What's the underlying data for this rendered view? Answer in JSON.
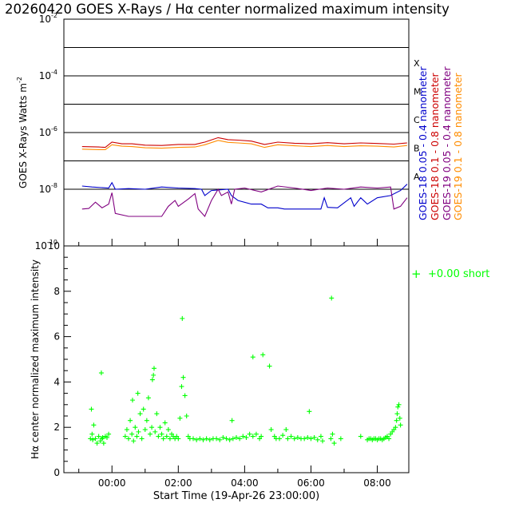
{
  "title": "20260420 GOES X-Rays / Hα center normalized maximum intensity",
  "x_axis": {
    "label": "Start Time (19-Apr-26 23:00:00)",
    "ticks": [
      {
        "hour": 1,
        "label": "00:00"
      },
      {
        "hour": 3,
        "label": "02:00"
      },
      {
        "hour": 5,
        "label": "04:00"
      },
      {
        "hour": 7,
        "label": "06:00"
      },
      {
        "hour": 9,
        "label": "08:00"
      }
    ]
  },
  "chart_data": [
    {
      "type": "line",
      "name": "goes-xray",
      "ylabel_main": "GOES X-Rays Watts m",
      "ylabel_exp": "-2",
      "yscale": "log",
      "ylim": [
        1e-10,
        0.01
      ],
      "y_ticks": [
        {
          "value": 0.01,
          "base": "10",
          "exp": "-2"
        },
        {
          "value": 0.0001,
          "base": "10",
          "exp": "-4"
        },
        {
          "value": 1e-06,
          "base": "10",
          "exp": "-6"
        },
        {
          "value": 1e-08,
          "base": "10",
          "exp": "-8"
        },
        {
          "value": 1e-10,
          "base": "10",
          "exp": "-10"
        }
      ],
      "flare_classes": [
        {
          "label": "X",
          "value": 0.0001
        },
        {
          "label": "M",
          "value": 1e-05
        },
        {
          "label": "C",
          "value": 1e-06
        },
        {
          "label": "B",
          "value": 1e-07
        },
        {
          "label": "A",
          "value": 1e-08
        }
      ],
      "threshold_lines": [
        0.001,
        0.0001,
        1e-05,
        1e-06,
        1e-07,
        1e-08
      ],
      "series": [
        {
          "name": "GOES-18 0.05 - 0.4 nanometer",
          "color": "#0000cc",
          "points": [
            [
              0.1,
              1.3e-08
            ],
            [
              0.4,
              1.2e-08
            ],
            [
              0.9,
              1.1e-08
            ],
            [
              1.0,
              1.7e-08
            ],
            [
              1.1,
              1e-08
            ],
            [
              1.5,
              1.05e-08
            ],
            [
              2.0,
              1e-08
            ],
            [
              2.5,
              1.2e-08
            ],
            [
              3.0,
              1.1e-08
            ],
            [
              3.5,
              1.05e-08
            ],
            [
              3.7,
              1e-08
            ],
            [
              3.8,
              6e-09
            ],
            [
              4.0,
              9e-09
            ],
            [
              4.5,
              1e-08
            ],
            [
              4.6,
              6e-09
            ],
            [
              4.8,
              4e-09
            ],
            [
              5.2,
              3e-09
            ],
            [
              5.5,
              3e-09
            ],
            [
              5.7,
              2.2e-09
            ],
            [
              6.0,
              2.2e-09
            ],
            [
              6.2,
              2e-09
            ],
            [
              6.8,
              2e-09
            ],
            [
              7.3,
              2e-09
            ],
            [
              7.4,
              5e-09
            ],
            [
              7.5,
              2.3e-09
            ],
            [
              7.8,
              2.2e-09
            ],
            [
              8.2,
              5e-09
            ],
            [
              8.3,
              2.5e-09
            ],
            [
              8.5,
              5e-09
            ],
            [
              8.7,
              3e-09
            ],
            [
              9.0,
              5e-09
            ],
            [
              9.4,
              6e-09
            ],
            [
              9.7,
              9e-09
            ],
            [
              9.9,
              1.5e-08
            ]
          ]
        },
        {
          "name": "GOES-18 0.1 - 0.8 nanometer",
          "color": "#cc0000",
          "points": [
            [
              0.1,
              3.2e-07
            ],
            [
              0.6,
              3.1e-07
            ],
            [
              0.8,
              3e-07
            ],
            [
              1.0,
              4.6e-07
            ],
            [
              1.3,
              4e-07
            ],
            [
              1.6,
              4e-07
            ],
            [
              2.0,
              3.6e-07
            ],
            [
              2.5,
              3.5e-07
            ],
            [
              3.0,
              3.8e-07
            ],
            [
              3.5,
              3.8e-07
            ],
            [
              3.8,
              4.6e-07
            ],
            [
              4.2,
              6.6e-07
            ],
            [
              4.5,
              5.6e-07
            ],
            [
              4.8,
              5.4e-07
            ],
            [
              5.2,
              5e-07
            ],
            [
              5.6,
              3.8e-07
            ],
            [
              6.0,
              4.6e-07
            ],
            [
              6.5,
              4.2e-07
            ],
            [
              7.0,
              4e-07
            ],
            [
              7.5,
              4.4e-07
            ],
            [
              8.0,
              4e-07
            ],
            [
              8.5,
              4.3e-07
            ],
            [
              9.0,
              4.1e-07
            ],
            [
              9.5,
              3.9e-07
            ],
            [
              9.9,
              4.3e-07
            ]
          ]
        },
        {
          "name": "GOES-19 0.05 - 0.4 nanometer",
          "color": "#800080",
          "points": [
            [
              0.1,
              2e-09
            ],
            [
              0.3,
              2.1e-09
            ],
            [
              0.5,
              3.5e-09
            ],
            [
              0.7,
              2.2e-09
            ],
            [
              0.9,
              3e-09
            ],
            [
              1.0,
              7.5e-09
            ],
            [
              1.1,
              1.4e-09
            ],
            [
              1.5,
              1.1e-09
            ],
            [
              2.0,
              1.1e-09
            ],
            [
              2.5,
              1.1e-09
            ],
            [
              2.7,
              2.5e-09
            ],
            [
              2.9,
              4e-09
            ],
            [
              3.0,
              2.5e-09
            ],
            [
              3.3,
              4.5e-09
            ],
            [
              3.5,
              7e-09
            ],
            [
              3.6,
              2e-09
            ],
            [
              3.8,
              1.1e-09
            ],
            [
              4.0,
              4e-09
            ],
            [
              4.2,
              1e-08
            ],
            [
              4.3,
              6e-09
            ],
            [
              4.5,
              8e-09
            ],
            [
              4.6,
              3e-09
            ],
            [
              4.7,
              1e-08
            ],
            [
              5.0,
              1.1e-08
            ],
            [
              5.5,
              8e-09
            ],
            [
              6.0,
              1.3e-08
            ],
            [
              6.5,
              1.1e-08
            ],
            [
              7.0,
              9e-09
            ],
            [
              7.5,
              1.1e-08
            ],
            [
              8.0,
              1e-08
            ],
            [
              8.5,
              1.2e-08
            ],
            [
              9.0,
              1.1e-08
            ],
            [
              9.4,
              1.2e-08
            ],
            [
              9.5,
              2e-09
            ],
            [
              9.7,
              2.5e-09
            ],
            [
              9.9,
              5e-09
            ]
          ]
        },
        {
          "name": "GOES-19 0.1 - 0.8 nanometer",
          "color": "#ff8c00",
          "points": [
            [
              0.1,
              2.6e-07
            ],
            [
              0.6,
              2.5e-07
            ],
            [
              0.8,
              2.5e-07
            ],
            [
              1.0,
              3.7e-07
            ],
            [
              1.3,
              3.3e-07
            ],
            [
              1.6,
              3.2e-07
            ],
            [
              2.0,
              2.9e-07
            ],
            [
              2.5,
              2.8e-07
            ],
            [
              3.0,
              3e-07
            ],
            [
              3.5,
              3.1e-07
            ],
            [
              3.8,
              3.7e-07
            ],
            [
              4.2,
              5.3e-07
            ],
            [
              4.5,
              4.5e-07
            ],
            [
              4.8,
              4.3e-07
            ],
            [
              5.2,
              4e-07
            ],
            [
              5.6,
              3e-07
            ],
            [
              6.0,
              3.7e-07
            ],
            [
              6.5,
              3.4e-07
            ],
            [
              7.0,
              3.2e-07
            ],
            [
              7.5,
              3.5e-07
            ],
            [
              8.0,
              3.2e-07
            ],
            [
              8.5,
              3.4e-07
            ],
            [
              9.0,
              3.3e-07
            ],
            [
              9.5,
              3.1e-07
            ],
            [
              9.9,
              3.5e-07
            ]
          ]
        }
      ]
    },
    {
      "type": "scatter",
      "name": "halpha-intensity",
      "ylabel": "Hα center normalized maximum intensity",
      "ylim": [
        0,
        10
      ],
      "y_ticks": [
        0,
        2,
        4,
        6,
        8,
        10
      ],
      "legend": {
        "symbol": "+",
        "text": "+0.00 short",
        "color": "#00ff00"
      },
      "points": [
        [
          0.35,
          1.5
        ],
        [
          0.4,
          1.7
        ],
        [
          0.42,
          1.45
        ],
        [
          0.5,
          1.5
        ],
        [
          0.55,
          1.3
        ],
        [
          0.6,
          1.6
        ],
        [
          0.65,
          1.4
        ],
        [
          0.7,
          1.5
        ],
        [
          0.72,
          1.55
        ],
        [
          0.75,
          1.3
        ],
        [
          0.8,
          1.6
        ],
        [
          0.85,
          1.55
        ],
        [
          0.9,
          1.7
        ],
        [
          0.68,
          4.4
        ],
        [
          0.38,
          2.8
        ],
        [
          0.45,
          2.1
        ],
        [
          1.4,
          1.6
        ],
        [
          1.45,
          1.9
        ],
        [
          1.5,
          1.5
        ],
        [
          1.55,
          2.3
        ],
        [
          1.6,
          1.7
        ],
        [
          1.62,
          3.2
        ],
        [
          1.65,
          1.4
        ],
        [
          1.7,
          2.0
        ],
        [
          1.75,
          1.6
        ],
        [
          1.78,
          3.5
        ],
        [
          1.8,
          1.8
        ],
        [
          1.85,
          2.6
        ],
        [
          1.9,
          1.5
        ],
        [
          1.95,
          2.8
        ],
        [
          2.0,
          1.9
        ],
        [
          2.05,
          2.3
        ],
        [
          2.1,
          3.3
        ],
        [
          2.15,
          1.7
        ],
        [
          2.2,
          2.0
        ],
        [
          2.22,
          4.1
        ],
        [
          2.25,
          4.3
        ],
        [
          2.27,
          4.6
        ],
        [
          2.3,
          1.8
        ],
        [
          2.35,
          2.6
        ],
        [
          2.4,
          1.6
        ],
        [
          2.45,
          2.0
        ],
        [
          2.5,
          1.7
        ],
        [
          2.55,
          1.5
        ],
        [
          2.6,
          2.2
        ],
        [
          2.65,
          1.6
        ],
        [
          2.7,
          1.9
        ],
        [
          2.75,
          1.5
        ],
        [
          2.8,
          1.7
        ],
        [
          2.85,
          1.6
        ],
        [
          2.9,
          1.5
        ],
        [
          2.95,
          1.6
        ],
        [
          3.0,
          1.5
        ],
        [
          3.05,
          2.4
        ],
        [
          3.1,
          3.8
        ],
        [
          3.12,
          6.8
        ],
        [
          3.15,
          4.2
        ],
        [
          3.2,
          3.4
        ],
        [
          3.25,
          2.5
        ],
        [
          3.3,
          1.6
        ],
        [
          3.35,
          1.5
        ],
        [
          3.45,
          1.5
        ],
        [
          3.55,
          1.45
        ],
        [
          3.65,
          1.5
        ],
        [
          3.75,
          1.45
        ],
        [
          3.85,
          1.5
        ],
        [
          3.95,
          1.45
        ],
        [
          4.05,
          1.5
        ],
        [
          4.15,
          1.5
        ],
        [
          4.25,
          1.45
        ],
        [
          4.35,
          1.55
        ],
        [
          4.45,
          1.5
        ],
        [
          4.55,
          1.45
        ],
        [
          4.65,
          1.5
        ],
        [
          4.75,
          1.55
        ],
        [
          4.85,
          1.5
        ],
        [
          4.95,
          1.6
        ],
        [
          5.05,
          1.55
        ],
        [
          5.15,
          1.7
        ],
        [
          5.25,
          1.6
        ],
        [
          5.35,
          1.7
        ],
        [
          5.45,
          1.5
        ],
        [
          5.5,
          1.6
        ],
        [
          4.62,
          2.3
        ],
        [
          5.25,
          5.1
        ],
        [
          5.55,
          5.2
        ],
        [
          5.75,
          4.7
        ],
        [
          5.8,
          1.9
        ],
        [
          5.9,
          1.6
        ],
        [
          5.95,
          1.5
        ],
        [
          6.05,
          1.5
        ],
        [
          6.15,
          1.65
        ],
        [
          6.25,
          1.9
        ],
        [
          6.3,
          1.5
        ],
        [
          6.4,
          1.6
        ],
        [
          6.5,
          1.5
        ],
        [
          6.6,
          1.55
        ],
        [
          6.7,
          1.5
        ],
        [
          6.8,
          1.5
        ],
        [
          6.9,
          1.55
        ],
        [
          6.95,
          2.7
        ],
        [
          7.0,
          1.5
        ],
        [
          7.1,
          1.55
        ],
        [
          7.2,
          1.45
        ],
        [
          7.3,
          1.6
        ],
        [
          7.35,
          1.4
        ],
        [
          7.6,
          1.5
        ],
        [
          7.62,
          7.7
        ],
        [
          7.65,
          1.7
        ],
        [
          7.7,
          1.3
        ],
        [
          7.9,
          1.5
        ],
        [
          8.5,
          1.6
        ],
        [
          8.7,
          1.45
        ],
        [
          8.75,
          1.5
        ],
        [
          8.8,
          1.5
        ],
        [
          8.85,
          1.45
        ],
        [
          8.9,
          1.5
        ],
        [
          8.95,
          1.5
        ],
        [
          9.0,
          1.45
        ],
        [
          9.05,
          1.5
        ],
        [
          9.1,
          1.5
        ],
        [
          9.15,
          1.45
        ],
        [
          9.2,
          1.5
        ],
        [
          9.25,
          1.55
        ],
        [
          9.3,
          1.6
        ],
        [
          9.35,
          1.5
        ],
        [
          9.4,
          1.7
        ],
        [
          9.45,
          1.8
        ],
        [
          9.5,
          1.9
        ],
        [
          9.55,
          2.0
        ],
        [
          9.58,
          2.3
        ],
        [
          9.6,
          2.6
        ],
        [
          9.62,
          2.9
        ],
        [
          9.65,
          3.0
        ],
        [
          9.68,
          2.4
        ],
        [
          9.7,
          2.1
        ]
      ]
    }
  ]
}
